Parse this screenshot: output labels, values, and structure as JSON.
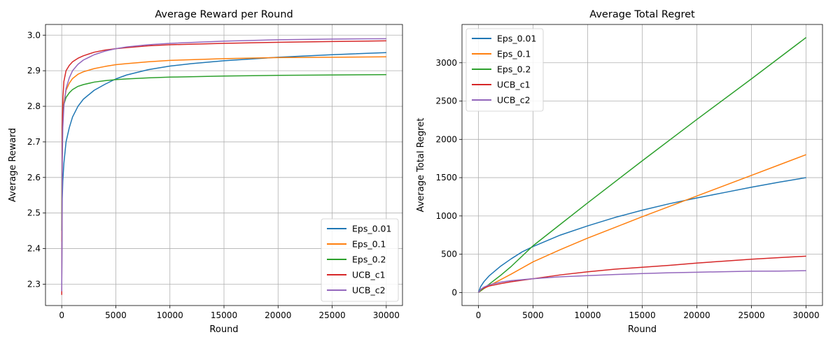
{
  "chart_data": [
    {
      "type": "line",
      "title": "Average Reward per Round",
      "xlabel": "Round",
      "ylabel": "Average Reward",
      "xlim": [
        -1500,
        31500
      ],
      "ylim": [
        2.24,
        3.03
      ],
      "xticks": [
        0,
        5000,
        10000,
        15000,
        20000,
        25000,
        30000
      ],
      "yticks": [
        2.3,
        2.4,
        2.5,
        2.6,
        2.7,
        2.8,
        2.9,
        3.0
      ],
      "ytick_labels": [
        "2.3",
        "2.4",
        "2.5",
        "2.6",
        "2.7",
        "2.8",
        "2.9",
        "3.0"
      ],
      "grid": true,
      "legend_position": "lower-right",
      "series": [
        {
          "name": "Eps_0.01",
          "color": "#1f77b4",
          "x": [
            1,
            50,
            100,
            200,
            400,
            700,
            1000,
            1500,
            2000,
            3000,
            4000,
            5000,
            6000,
            8000,
            10000,
            12000,
            15000,
            20000,
            25000,
            30000
          ],
          "y": [
            2.3,
            2.54,
            2.59,
            2.64,
            2.7,
            2.74,
            2.77,
            2.8,
            2.82,
            2.845,
            2.862,
            2.877,
            2.888,
            2.903,
            2.913,
            2.92,
            2.928,
            2.938,
            2.945,
            2.951
          ]
        },
        {
          "name": "Eps_0.1",
          "color": "#ff7f0e",
          "x": [
            1,
            50,
            100,
            200,
            400,
            700,
            1000,
            1500,
            2000,
            3000,
            4000,
            5000,
            6000,
            8000,
            10000,
            12000,
            15000,
            20000,
            25000,
            30000
          ],
          "y": [
            2.42,
            2.72,
            2.77,
            2.81,
            2.845,
            2.865,
            2.878,
            2.89,
            2.897,
            2.906,
            2.912,
            2.917,
            2.92,
            2.925,
            2.929,
            2.931,
            2.934,
            2.937,
            2.938,
            2.939
          ]
        },
        {
          "name": "Eps_0.2",
          "color": "#2ca02c",
          "x": [
            1,
            50,
            100,
            200,
            400,
            700,
            1000,
            1500,
            2000,
            3000,
            4000,
            5000,
            6000,
            8000,
            10000,
            15000,
            20000,
            25000,
            30000
          ],
          "y": [
            2.45,
            2.74,
            2.78,
            2.805,
            2.825,
            2.838,
            2.847,
            2.856,
            2.861,
            2.868,
            2.872,
            2.875,
            2.877,
            2.88,
            2.882,
            2.885,
            2.887,
            2.888,
            2.889
          ]
        },
        {
          "name": "UCB_c1",
          "color": "#d62728",
          "x": [
            1,
            50,
            100,
            200,
            400,
            700,
            1000,
            1500,
            2000,
            3000,
            4000,
            5000,
            6000,
            8000,
            10000,
            15000,
            20000,
            25000,
            30000
          ],
          "y": [
            2.27,
            2.74,
            2.82,
            2.87,
            2.9,
            2.915,
            2.925,
            2.935,
            2.942,
            2.952,
            2.958,
            2.962,
            2.965,
            2.97,
            2.973,
            2.977,
            2.98,
            2.982,
            2.984
          ]
        },
        {
          "name": "UCB_c2",
          "color": "#9467bd",
          "x": [
            1,
            50,
            100,
            200,
            400,
            700,
            1000,
            1500,
            2000,
            3000,
            4000,
            5000,
            6000,
            8000,
            10000,
            15000,
            20000,
            25000,
            30000
          ],
          "y": [
            2.28,
            2.64,
            2.74,
            2.8,
            2.85,
            2.88,
            2.9,
            2.918,
            2.93,
            2.945,
            2.955,
            2.962,
            2.967,
            2.973,
            2.977,
            2.983,
            2.987,
            2.989,
            2.99
          ]
        }
      ]
    },
    {
      "type": "line",
      "title": "Average Total Regret",
      "xlabel": "Round",
      "ylabel": "Average Total Regret",
      "xlim": [
        -1500,
        31500
      ],
      "ylim": [
        -170,
        3500
      ],
      "xticks": [
        0,
        5000,
        10000,
        15000,
        20000,
        25000,
        30000
      ],
      "yticks": [
        0,
        500,
        1000,
        1500,
        2000,
        2500,
        3000
      ],
      "ytick_labels": [
        "0",
        "500",
        "1000",
        "1500",
        "2000",
        "2500",
        "3000"
      ],
      "grid": true,
      "legend_position": "upper-left",
      "series": [
        {
          "name": "Eps_0.01",
          "color": "#1f77b4",
          "x": [
            0,
            200,
            500,
            1000,
            2000,
            3000,
            4000,
            5000,
            7500,
            10000,
            12500,
            15000,
            17500,
            20000,
            22500,
            25000,
            27500,
            30000
          ],
          "y": [
            0,
            75,
            140,
            220,
            340,
            440,
            530,
            600,
            750,
            870,
            980,
            1075,
            1160,
            1235,
            1305,
            1375,
            1440,
            1500
          ]
        },
        {
          "name": "Eps_0.1",
          "color": "#ff7f0e",
          "x": [
            0,
            500,
            1000,
            2000,
            3000,
            5000,
            7500,
            10000,
            12500,
            15000,
            17500,
            20000,
            22500,
            25000,
            27500,
            30000
          ],
          "y": [
            0,
            50,
            90,
            165,
            240,
            400,
            560,
            710,
            850,
            990,
            1125,
            1260,
            1395,
            1530,
            1665,
            1800
          ]
        },
        {
          "name": "Eps_0.2",
          "color": "#2ca02c",
          "x": [
            0,
            500,
            1000,
            2000,
            3000,
            5000,
            7500,
            10000,
            15000,
            20000,
            25000,
            30000
          ],
          "y": [
            0,
            55,
            110,
            220,
            340,
            610,
            890,
            1170,
            1720,
            2260,
            2790,
            3330
          ]
        },
        {
          "name": "UCB_c1",
          "color": "#d62728",
          "x": [
            0,
            250,
            500,
            1000,
            2000,
            3000,
            5000,
            7500,
            10000,
            12500,
            15000,
            17500,
            20000,
            22500,
            25000,
            27500,
            30000
          ],
          "y": [
            0,
            40,
            60,
            85,
            115,
            140,
            180,
            230,
            270,
            305,
            330,
            355,
            385,
            410,
            435,
            455,
            475
          ]
        },
        {
          "name": "UCB_c2",
          "color": "#9467bd",
          "x": [
            0,
            250,
            500,
            1000,
            2000,
            3000,
            5000,
            7500,
            10000,
            12500,
            15000,
            17500,
            20000,
            22500,
            25000,
            27500,
            30000
          ],
          "y": [
            0,
            45,
            70,
            100,
            135,
            155,
            180,
            205,
            220,
            235,
            248,
            258,
            265,
            272,
            278,
            280,
            285
          ]
        }
      ]
    }
  ]
}
